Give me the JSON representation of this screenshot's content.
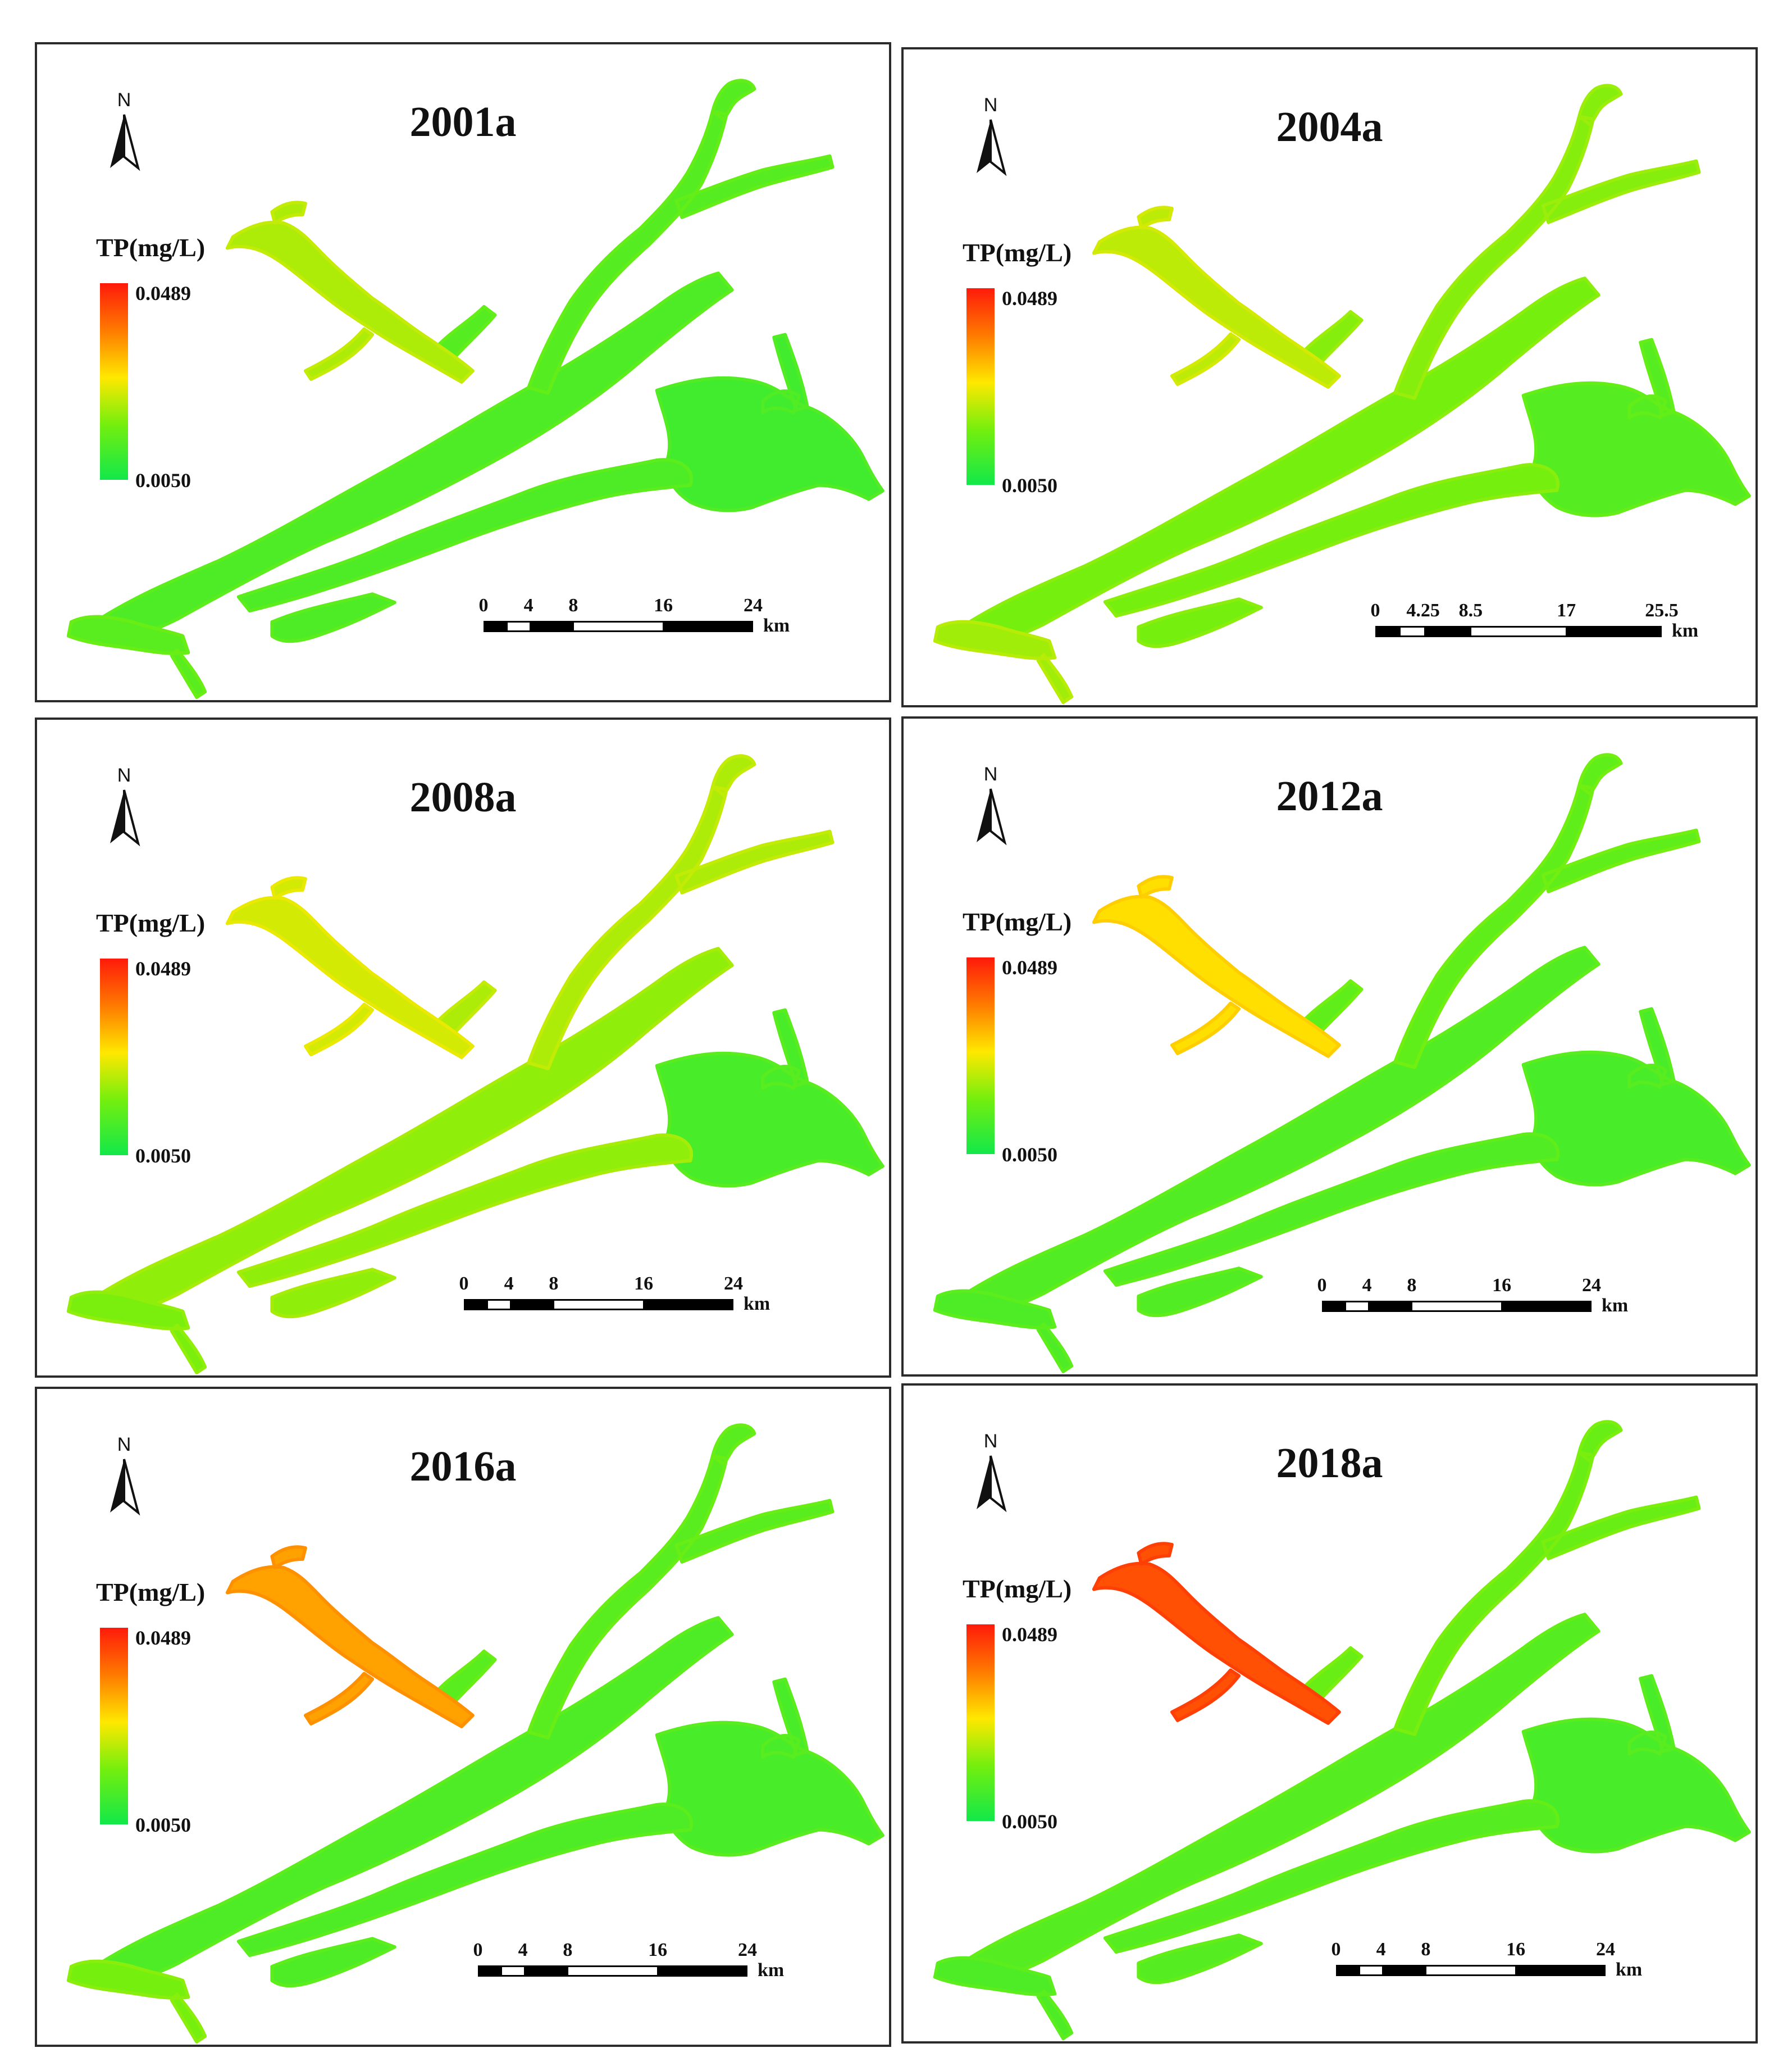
{
  "legend": {
    "title": "TP(mg/L)",
    "max": "0.0489",
    "min": "0.0050",
    "north": "N",
    "ramp_colors": [
      "#ff1a0a",
      "#ff7a00",
      "#ffe800",
      "#74ef0e",
      "#12e84a"
    ]
  },
  "panels": [
    {
      "title": "2001a",
      "scale_ticks": [
        "0",
        "4",
        "8",
        "16",
        "24"
      ],
      "scale_unit": "km",
      "tp_level": {
        "northwest_arm": 0.35,
        "upper_arms": 0.17,
        "main_body": 0.15,
        "southwest_end": 0.18,
        "east_bays": 0.12
      }
    },
    {
      "title": "2004a",
      "scale_ticks": [
        "0",
        "4.25",
        "8.5",
        "17",
        "25.5"
      ],
      "scale_unit": "km",
      "tp_level": {
        "northwest_arm": 0.38,
        "upper_arms": 0.28,
        "main_body": 0.25,
        "southwest_end": 0.33,
        "east_bays": 0.17
      }
    },
    {
      "title": "2008a",
      "scale_ticks": [
        "0",
        "4",
        "8",
        "16",
        "24"
      ],
      "scale_unit": "km",
      "tp_level": {
        "northwest_arm": 0.42,
        "upper_arms": 0.35,
        "main_body": 0.3,
        "southwest_end": 0.26,
        "east_bays": 0.14
      }
    },
    {
      "title": "2012a",
      "scale_ticks": [
        "0",
        "4",
        "8",
        "16",
        "24"
      ],
      "scale_unit": "km",
      "tp_level": {
        "northwest_arm": 0.52,
        "upper_arms": 0.2,
        "main_body": 0.16,
        "southwest_end": 0.15,
        "east_bays": 0.14
      }
    },
    {
      "title": "2016a",
      "scale_ticks": [
        "0",
        "4",
        "8",
        "16",
        "24"
      ],
      "scale_unit": "km",
      "tp_level": {
        "northwest_arm": 0.66,
        "upper_arms": 0.18,
        "main_body": 0.15,
        "southwest_end": 0.25,
        "east_bays": 0.14
      }
    },
    {
      "title": "2018a",
      "scale_ticks": [
        "0",
        "4",
        "8",
        "16",
        "24"
      ],
      "scale_unit": "km",
      "tp_level": {
        "northwest_arm": 0.86,
        "upper_arms": 0.22,
        "main_body": 0.17,
        "southwest_end": 0.15,
        "east_bays": 0.14
      }
    }
  ]
}
